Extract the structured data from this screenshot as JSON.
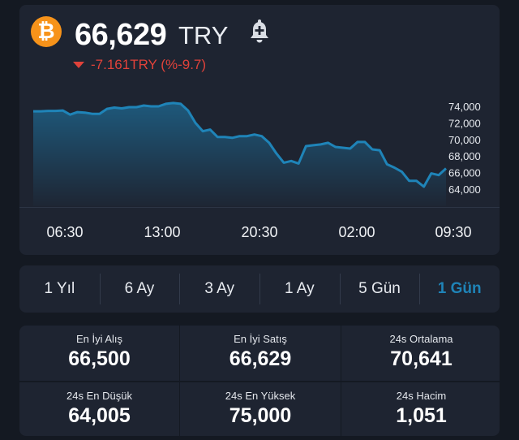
{
  "header": {
    "coin_symbol": "₿",
    "price": "66,629",
    "currency": "TRY",
    "alert_icon": "bell-plus-icon",
    "change": "-7.161TRY (%-9.7)",
    "change_color": "#e0423a"
  },
  "chart_data": {
    "type": "area",
    "title": "",
    "xlabel": "",
    "ylabel": "",
    "x_ticks": [
      "06:30",
      "13:00",
      "20:30",
      "02:00",
      "09:30"
    ],
    "y_ticks": [
      "74,000",
      "72,000",
      "70,000",
      "68,000",
      "66,000",
      "64,000"
    ],
    "ylim": [
      62800,
      75000
    ],
    "grid": false,
    "series": [
      {
        "color": "#1f84b8",
        "values": [
          73400,
          73400,
          73450,
          73450,
          73500,
          73000,
          73300,
          73250,
          73100,
          73100,
          73700,
          73850,
          73750,
          73900,
          73900,
          74100,
          74000,
          74000,
          74300,
          74400,
          74300,
          73500,
          72000,
          71000,
          71200,
          70300,
          70300,
          70200,
          70400,
          70400,
          70600,
          70400,
          69600,
          68300,
          67200,
          67400,
          67100,
          69200,
          69300,
          69400,
          69600,
          69100,
          69000,
          68900,
          69700,
          69700,
          68800,
          68700,
          67000,
          66600,
          66100,
          65000,
          65000,
          64300,
          65900,
          65700,
          66500
        ]
      }
    ]
  },
  "ranges": {
    "items": [
      "1 Yıl",
      "6 Ay",
      "3 Ay",
      "1 Ay",
      "5 Gün",
      "1 Gün"
    ],
    "active": "1 Gün"
  },
  "stats": [
    {
      "label": "En İyi Alış",
      "value": "66,500"
    },
    {
      "label": "En İyi Satış",
      "value": "66,629"
    },
    {
      "label": "24s Ortalama",
      "value": "70,641"
    },
    {
      "label": "24s En Düşük",
      "value": "64,005"
    },
    {
      "label": "24s En Yüksek",
      "value": "75,000"
    },
    {
      "label": "24s Hacim",
      "value": "1,051"
    }
  ],
  "colors": {
    "background": "#141922",
    "card": "#1e2431",
    "accent": "#1f84b8",
    "negative": "#e0423a",
    "bitcoin": "#f7931a"
  }
}
